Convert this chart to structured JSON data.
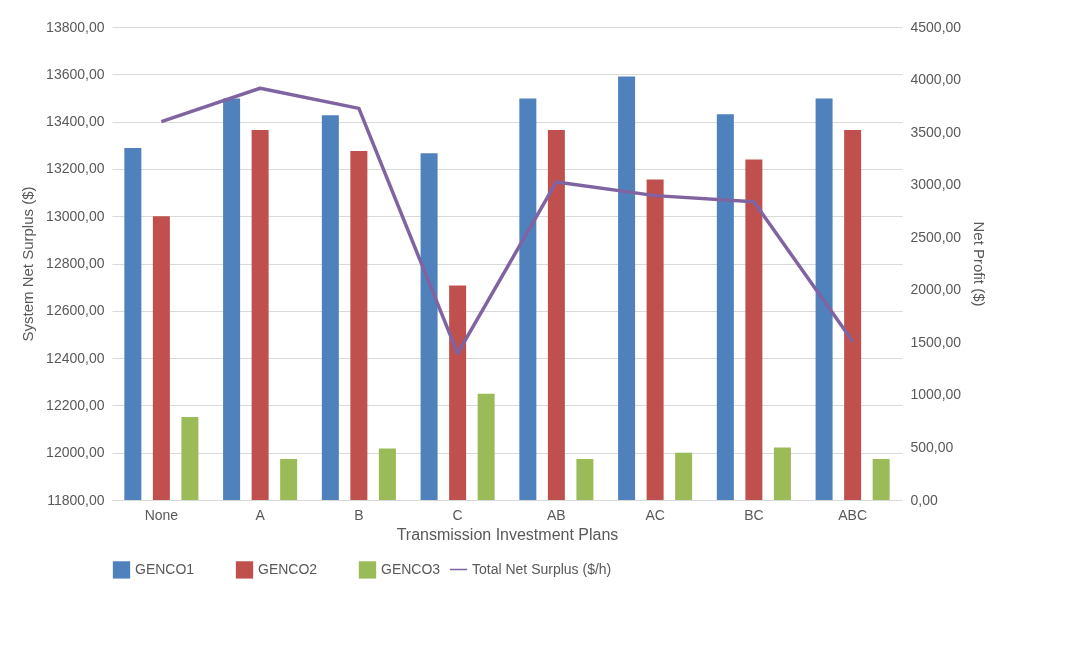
{
  "chart_data": {
    "type": "bar",
    "xlabel": "Transmission Investment Plans",
    "ylabel": "System Net Surplus ($)",
    "y2label": "Net Profit ($)",
    "categories": [
      "None",
      "A",
      "B",
      "C",
      "AB",
      "AC",
      "BC",
      "ABC"
    ],
    "series": [
      {
        "name": "GENCO1",
        "color": "#4f81bd",
        "axis": "y2",
        "values": [
          3350,
          3820,
          3660,
          3300,
          3820,
          4030,
          3670,
          3820
        ]
      },
      {
        "name": "GENCO2",
        "color": "#c0504d",
        "axis": "y2",
        "values": [
          2700,
          3520,
          3320,
          2040,
          3520,
          3050,
          3240,
          3520
        ]
      },
      {
        "name": "GENCO3",
        "color": "#9bbb59",
        "axis": "y2",
        "values": [
          790,
          390,
          490,
          1010,
          390,
          450,
          500,
          390
        ]
      },
      {
        "name": "Total Net Surplus ($/h)",
        "color": "#8064a2",
        "type": "line",
        "values": [
          13400,
          13541,
          13456,
          12420,
          13145,
          13087,
          13061,
          12471
        ]
      }
    ],
    "ylim": [
      11800,
      13800
    ],
    "yticks": [
      {
        "value": 11800,
        "label": "11800,00"
      },
      {
        "value": 12000,
        "label": "12000,00"
      },
      {
        "value": 12200,
        "label": "12200,00"
      },
      {
        "value": 12400,
        "label": "12400,00"
      },
      {
        "value": 12600,
        "label": "12600,00"
      },
      {
        "value": 12800,
        "label": "12800,00"
      },
      {
        "value": 13000,
        "label": "13000,00"
      },
      {
        "value": 13200,
        "label": "13200,00"
      },
      {
        "value": 13400,
        "label": "13400,00"
      },
      {
        "value": 13600,
        "label": "13600,00"
      },
      {
        "value": 13800,
        "label": "13800,00"
      }
    ],
    "y2lim": [
      0,
      4500
    ],
    "y2ticks": [
      {
        "value": 0,
        "label": "0,00"
      },
      {
        "value": 500,
        "label": "500,00"
      },
      {
        "value": 1000,
        "label": "1000,00"
      },
      {
        "value": 1500,
        "label": "1500,00"
      },
      {
        "value": 2000,
        "label": "2000,00"
      },
      {
        "value": 2500,
        "label": "2500,00"
      },
      {
        "value": 3000,
        "label": "3000,00"
      },
      {
        "value": 3500,
        "label": "3500,00"
      },
      {
        "value": 4000,
        "label": "4000,00"
      },
      {
        "value": 4500,
        "label": "4500,00"
      }
    ],
    "grid": "y",
    "legend": "bottom",
    "line_style": "solid",
    "marker": "none"
  }
}
